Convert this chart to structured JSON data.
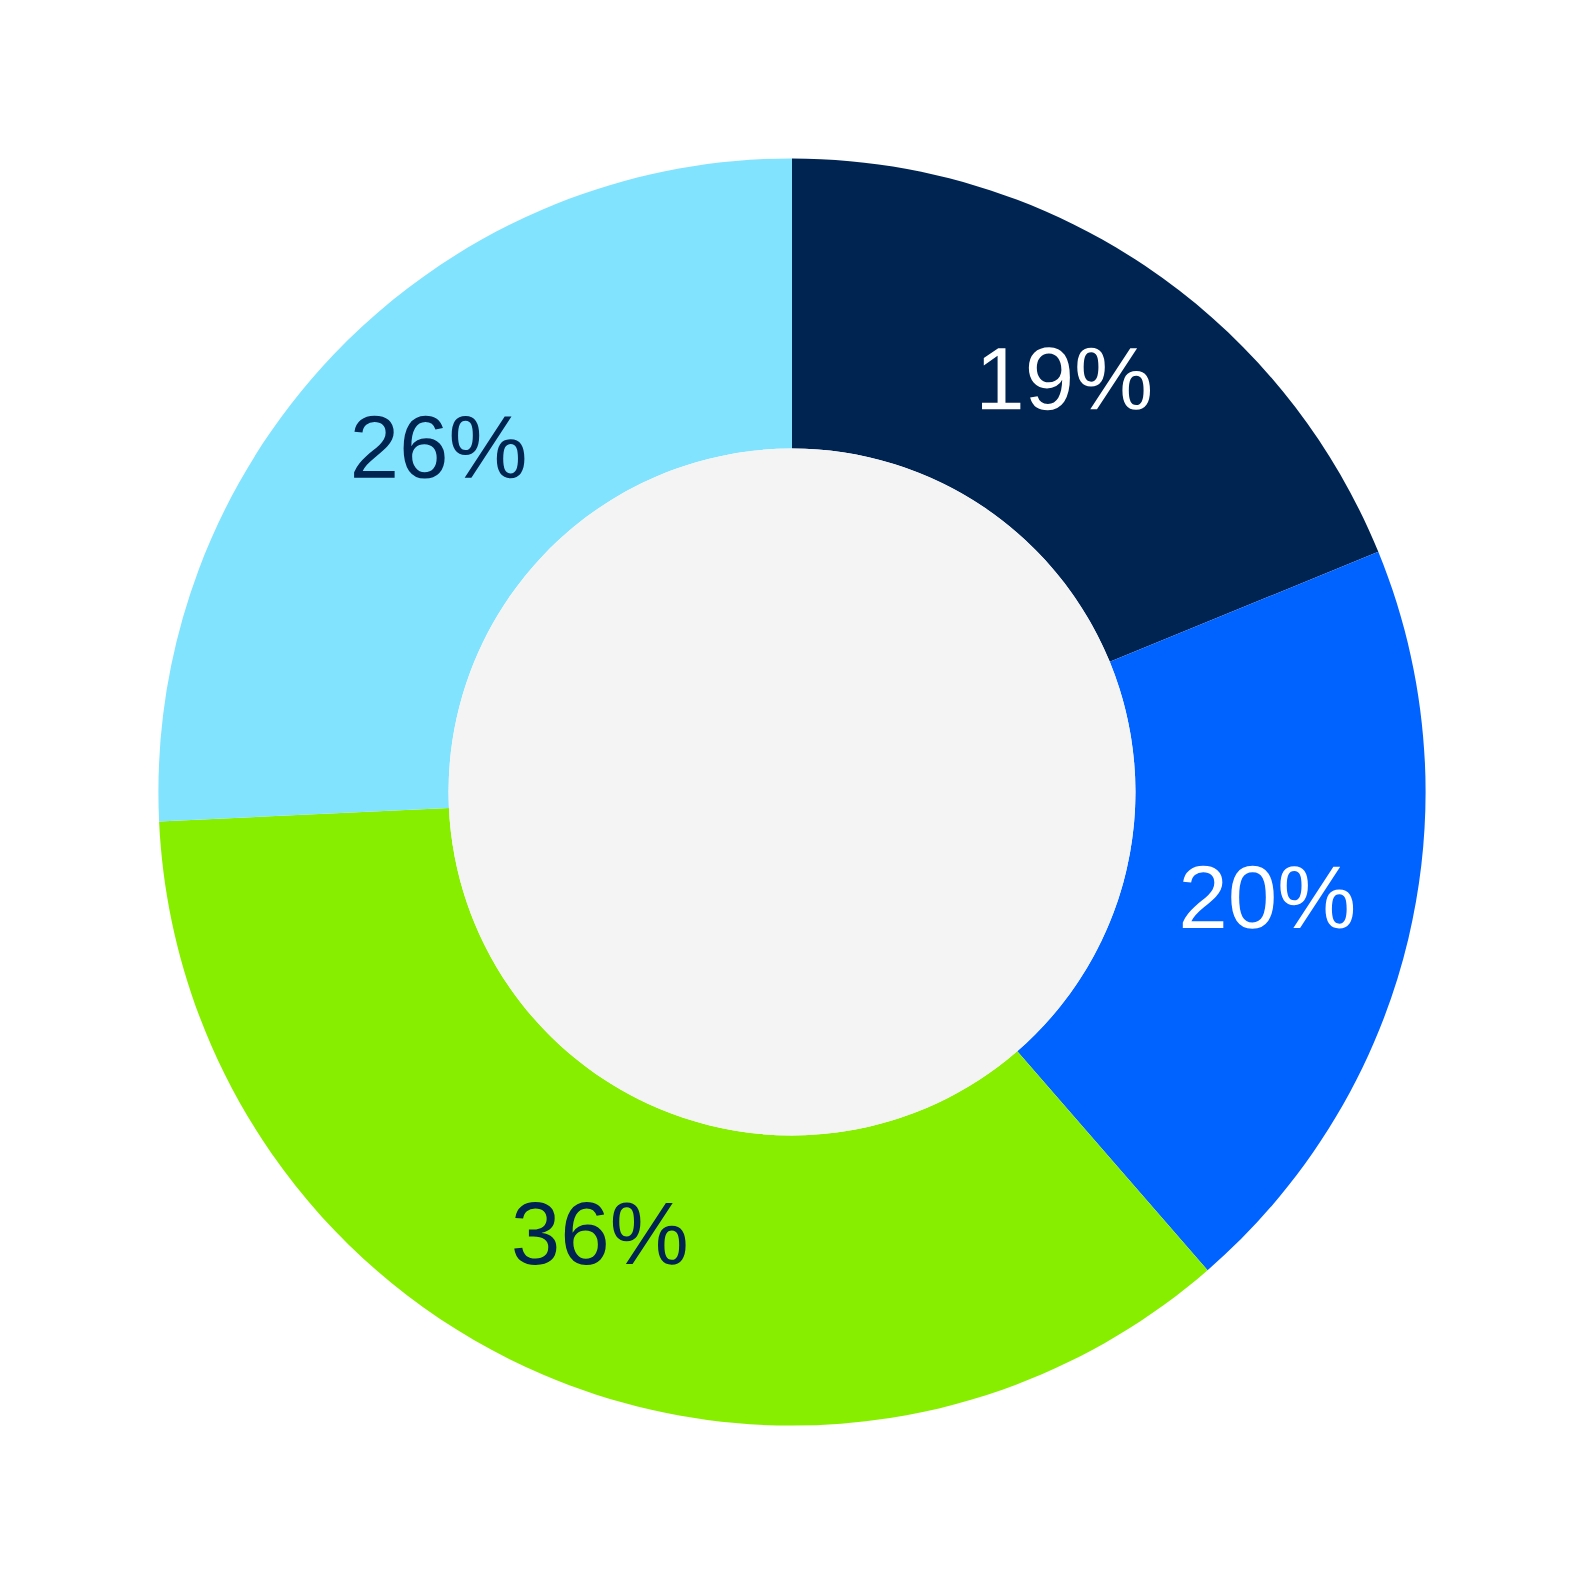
{
  "chart_data": {
    "type": "donut",
    "categories": [
      null,
      null,
      null,
      null
    ],
    "values": [
      19,
      20,
      36,
      26
    ],
    "colors": [
      "#002452",
      "#0062ff",
      "#88ee00",
      "#82e3ff"
    ],
    "value_labels": [
      "19%",
      "20%",
      "36%",
      "26%"
    ]
  }
}
